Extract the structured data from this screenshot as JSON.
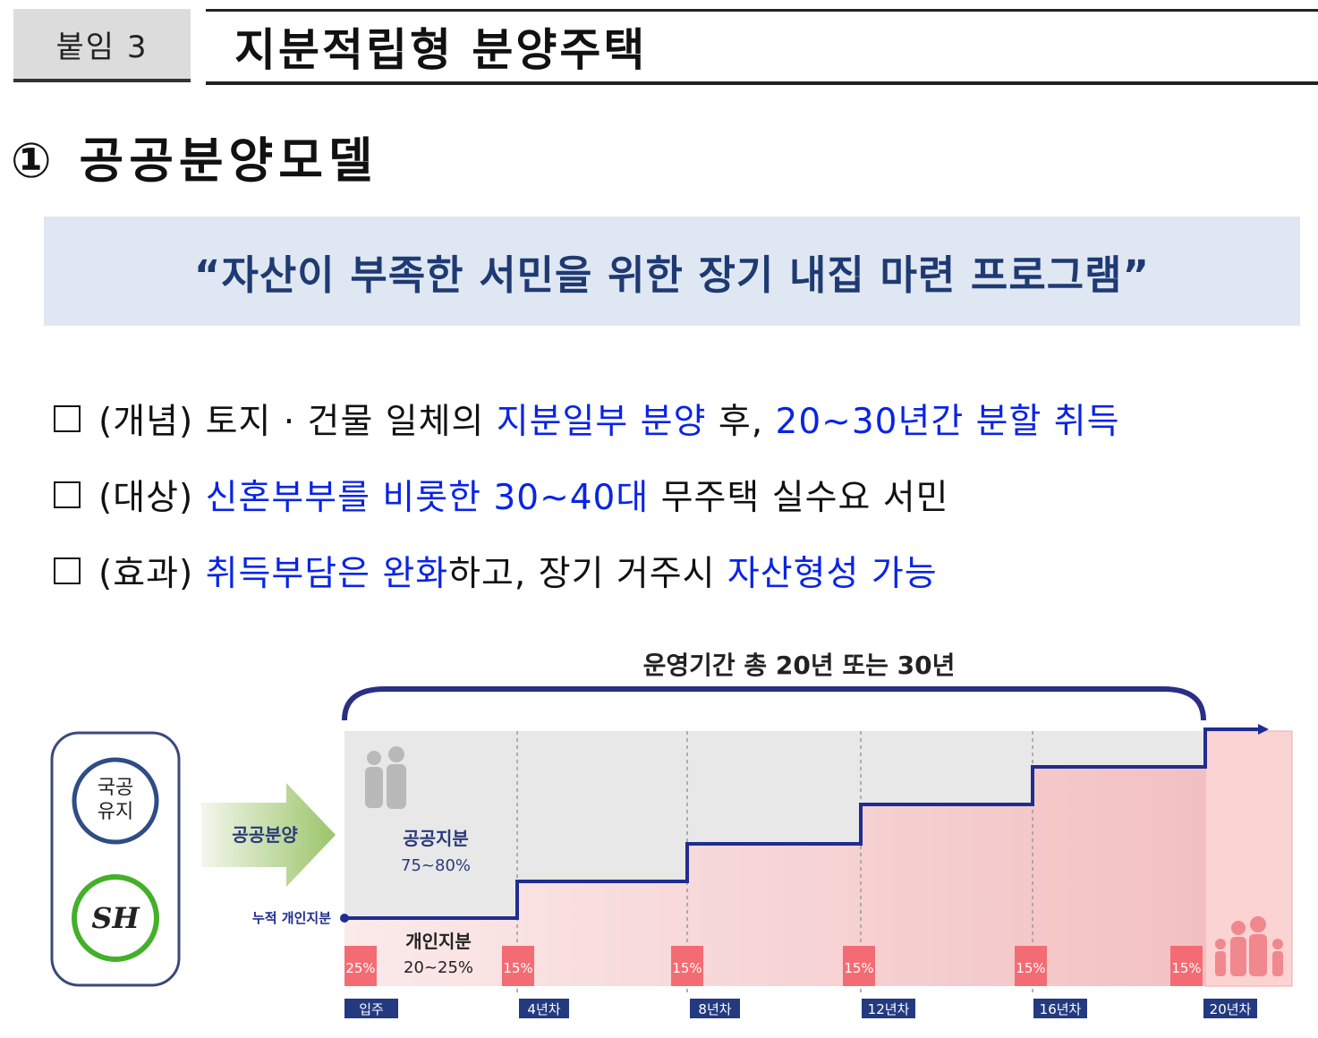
{
  "header": {
    "attachment_label": "붙임 3",
    "title": "지분적립형 분양주택"
  },
  "section": {
    "title": "① 공공분양모델"
  },
  "slogan": "“자산이 부족한 서민을 위한 장기 내집 마련 프로그램”",
  "bullets": [
    {
      "tag": "(개념)",
      "parts": [
        {
          "text": "토지 · 건물 일체의 ",
          "emph": false
        },
        {
          "text": "지분일부 분양",
          "emph": true
        },
        {
          "text": " 후, ",
          "emph": false
        },
        {
          "text": "20~30년간 분할 취득",
          "emph": true
        }
      ]
    },
    {
      "tag": "(대상)",
      "parts": [
        {
          "text": "신혼부부를 비롯한 30~40대",
          "emph": true
        },
        {
          "text": " 무주택 실수요 서민",
          "emph": false
        }
      ]
    },
    {
      "tag": "(효과)",
      "parts": [
        {
          "text": "취득부담은 완화",
          "emph": true
        },
        {
          "text": "하고, 장기 거주시 ",
          "emph": false
        },
        {
          "text": "자산형성 가능",
          "emph": true
        }
      ]
    }
  ],
  "diagram": {
    "period_label": "운영기간 총 20년 또는 30년",
    "badge_top": "국공\n유지",
    "badge_logo": "SH",
    "arrow_label": "공공분양",
    "public_share_label": "공공지분",
    "public_share_value": "75~80%",
    "private_share_label": "개인지분",
    "private_share_value": "20~25%",
    "cumulative_label": "누적 개인지분",
    "initial_share": "25%",
    "step_share": "15%",
    "milestones": [
      "입주",
      "4년차",
      "8년차",
      "12년차",
      "16년차",
      "20년차"
    ]
  },
  "colors": {
    "accent_blue": "#0a24e6",
    "slogan_bg": "#dfe7f2",
    "slogan_text": "#1f3a73",
    "line_navy": "#1f2d8f",
    "share_red": "#f46c73",
    "milestone_bg": "#243a80"
  }
}
